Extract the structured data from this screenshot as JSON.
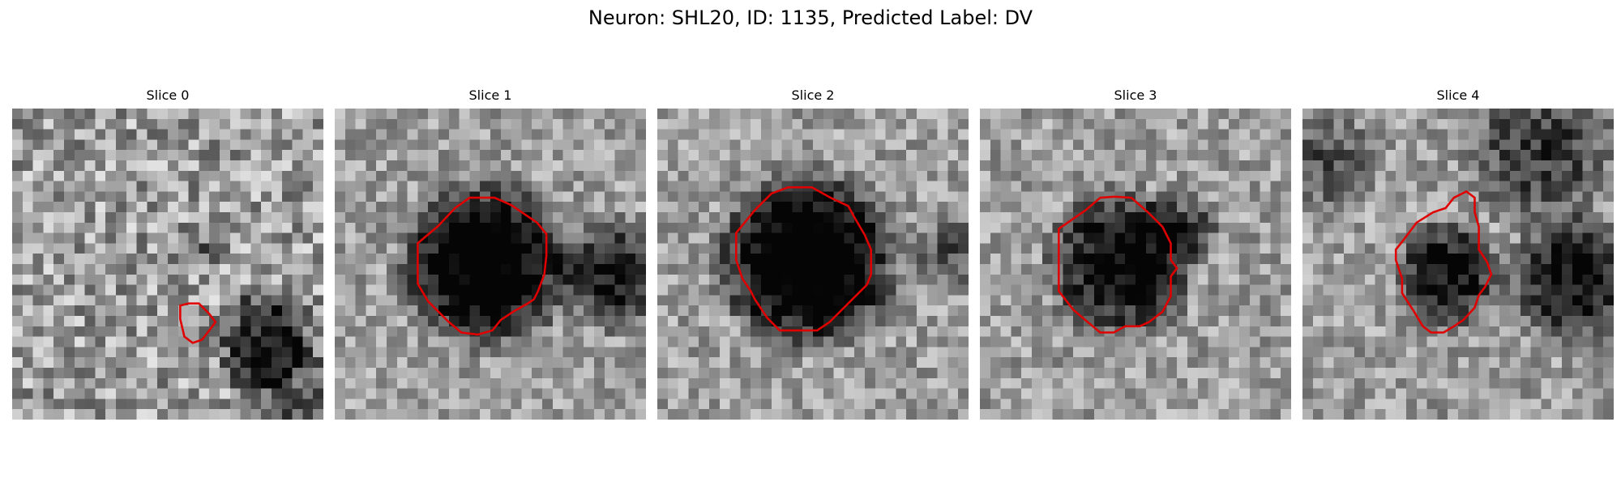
{
  "figure": {
    "title": "Neuron: SHL20, ID: 1135, Predicted Label: DV"
  },
  "colors": {
    "contour": "#e00000"
  },
  "slices": [
    {
      "title": "Slice 0",
      "contour": [
        [
          16.2,
          20.3
        ],
        [
          16.2,
          19
        ],
        [
          17,
          18.8
        ],
        [
          18,
          18.8
        ],
        [
          19,
          19.8
        ],
        [
          19.6,
          20.6
        ],
        [
          19,
          21.4
        ],
        [
          18.3,
          22.3
        ],
        [
          17.4,
          22.6
        ],
        [
          16.6,
          22
        ]
      ]
    },
    {
      "title": "Slice 1",
      "contour": [
        [
          10,
          11.3
        ],
        [
          11.6,
          9.6
        ],
        [
          13,
          8.6
        ],
        [
          15.4,
          8.6
        ],
        [
          17,
          9.3
        ],
        [
          19.5,
          11
        ],
        [
          20.4,
          12.1
        ],
        [
          20.4,
          14.2
        ],
        [
          20.2,
          16
        ],
        [
          19.6,
          17.6
        ],
        [
          19.2,
          18.4
        ],
        [
          18.6,
          18.8
        ],
        [
          17.2,
          19.6
        ],
        [
          16,
          20.4
        ],
        [
          15.2,
          21.4
        ],
        [
          13.8,
          21.8
        ],
        [
          12.2,
          21.6
        ],
        [
          10.9,
          20.5
        ],
        [
          9,
          18.6
        ],
        [
          8,
          16.9
        ],
        [
          8,
          13
        ]
      ]
    },
    {
      "title": "Slice 2",
      "contour": [
        [
          9.4,
          9.8
        ],
        [
          11,
          8.2
        ],
        [
          12.6,
          7.6
        ],
        [
          14.9,
          7.6
        ],
        [
          16.7,
          8.6
        ],
        [
          18.4,
          9.4
        ],
        [
          19,
          10.5
        ],
        [
          20,
          12.2
        ],
        [
          20.6,
          13.6
        ],
        [
          20.6,
          16
        ],
        [
          20.2,
          17
        ],
        [
          19,
          18.2
        ],
        [
          17.6,
          19.6
        ],
        [
          16.6,
          20.6
        ],
        [
          15.4,
          21.4
        ],
        [
          11.8,
          21.4
        ],
        [
          10.6,
          20.2
        ],
        [
          9.4,
          18.4
        ],
        [
          9,
          17.6
        ],
        [
          8.2,
          16.4
        ],
        [
          7.6,
          14.6
        ],
        [
          7.6,
          12
        ]
      ]
    },
    {
      "title": "Slice 3",
      "contour": [
        [
          10.2,
          9.8
        ],
        [
          11.6,
          8.6
        ],
        [
          13,
          8.5
        ],
        [
          14.6,
          8.6
        ],
        [
          16.2,
          10
        ],
        [
          17.6,
          11.4
        ],
        [
          18.4,
          13
        ],
        [
          18.4,
          14.6
        ],
        [
          19,
          15.4
        ],
        [
          18.4,
          16.2
        ],
        [
          18.4,
          18.1
        ],
        [
          17.6,
          19.6
        ],
        [
          16.3,
          20.6
        ],
        [
          15.4,
          21
        ],
        [
          14,
          21
        ],
        [
          12.9,
          21.6
        ],
        [
          11.6,
          21.6
        ],
        [
          10.4,
          20.6
        ],
        [
          9,
          19.4
        ],
        [
          7.6,
          17.6
        ],
        [
          7.6,
          14.4
        ],
        [
          7.6,
          11.6
        ]
      ]
    },
    {
      "title": "Slice 4",
      "contour": [
        [
          9.8,
          12.6
        ],
        [
          11,
          11
        ],
        [
          12.6,
          10
        ],
        [
          13.8,
          9.6
        ],
        [
          14.6,
          8.6
        ],
        [
          15.8,
          8
        ],
        [
          16.6,
          8.6
        ],
        [
          16.6,
          10
        ],
        [
          17,
          11.4
        ],
        [
          17,
          13.6
        ],
        [
          17.8,
          14.8
        ],
        [
          18.2,
          16
        ],
        [
          17.6,
          17.2
        ],
        [
          17,
          18
        ],
        [
          16.6,
          19.2
        ],
        [
          15.5,
          20.4
        ],
        [
          14.6,
          21
        ],
        [
          13.6,
          21.6
        ],
        [
          12.4,
          21.6
        ],
        [
          11.6,
          21
        ],
        [
          10.7,
          19.5
        ],
        [
          9.6,
          17.8
        ],
        [
          9.6,
          16.4
        ],
        [
          9,
          14.6
        ],
        [
          9,
          13.6
        ]
      ]
    }
  ]
}
